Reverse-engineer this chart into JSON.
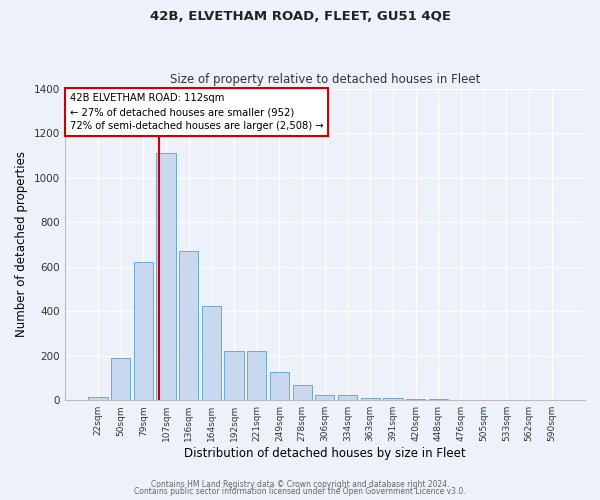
{
  "title": "42B, ELVETHAM ROAD, FLEET, GU51 4QE",
  "subtitle": "Size of property relative to detached houses in Fleet",
  "xlabel": "Distribution of detached houses by size in Fleet",
  "ylabel": "Number of detached properties",
  "bin_labels": [
    "22sqm",
    "50sqm",
    "79sqm",
    "107sqm",
    "136sqm",
    "164sqm",
    "192sqm",
    "221sqm",
    "249sqm",
    "278sqm",
    "306sqm",
    "334sqm",
    "363sqm",
    "391sqm",
    "420sqm",
    "448sqm",
    "476sqm",
    "505sqm",
    "533sqm",
    "562sqm",
    "590sqm"
  ],
  "bar_heights": [
    15,
    190,
    620,
    1110,
    670,
    425,
    220,
    220,
    125,
    70,
    25,
    25,
    10,
    10,
    5,
    5,
    3,
    3,
    2,
    2,
    2
  ],
  "bar_color": "#c8d9ef",
  "bar_edgecolor": "#6aaad4",
  "vline_color": "#cc0000",
  "annotation_text": "42B ELVETHAM ROAD: 112sqm\n← 27% of detached houses are smaller (952)\n72% of semi-detached houses are larger (2,508) →",
  "annotation_box_edgecolor": "#cc0000",
  "ylim": [
    0,
    1400
  ],
  "yticks": [
    0,
    200,
    400,
    600,
    800,
    1000,
    1200,
    1400
  ],
  "footer1": "Contains HM Land Registry data © Crown copyright and database right 2024.",
  "footer2": "Contains public sector information licensed under the Open Government Licence v3.0.",
  "bg_color": "#edf2fa",
  "plot_bg_color": "#edf2fa",
  "vline_pos": 2.67
}
